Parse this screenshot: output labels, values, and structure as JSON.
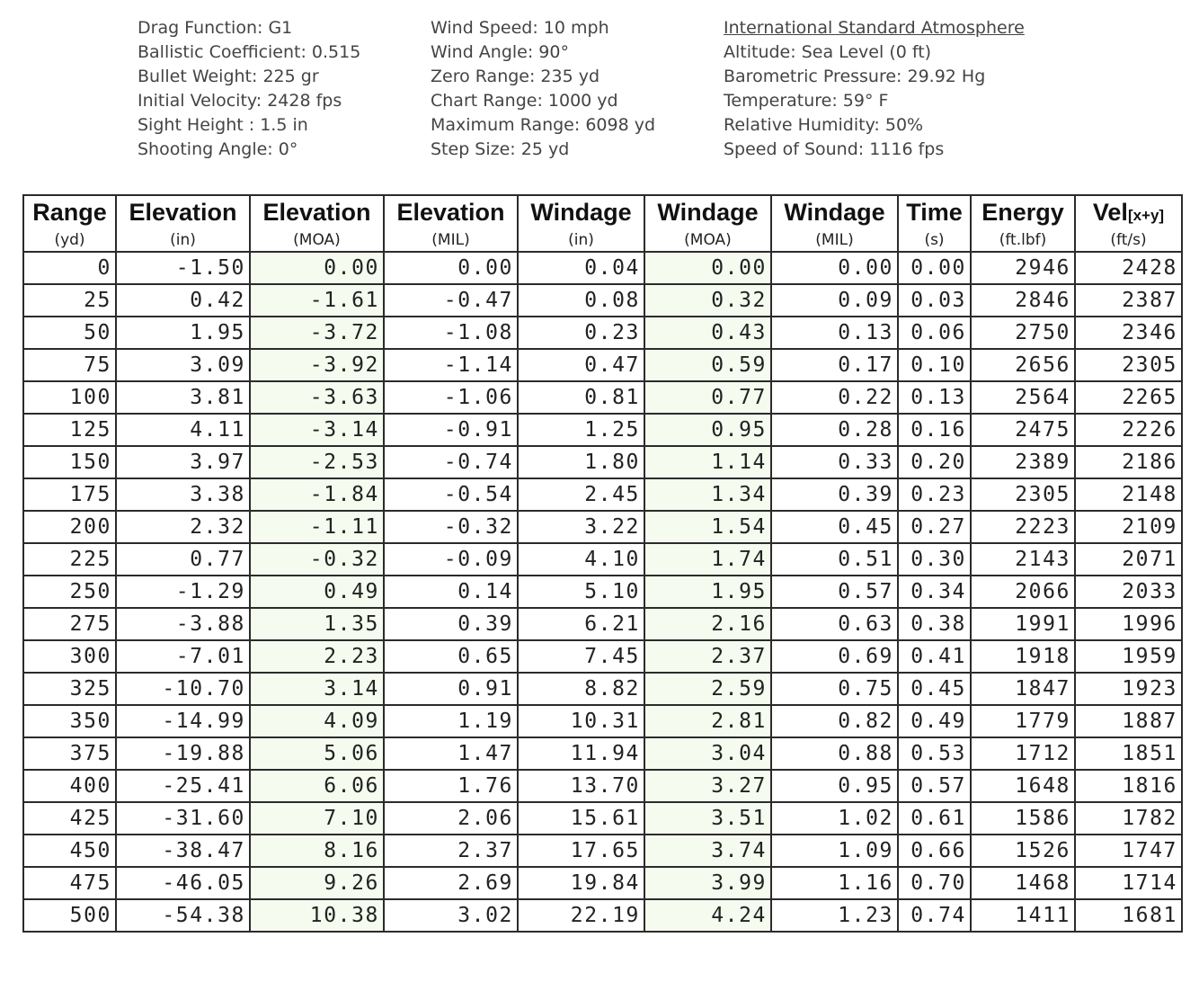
{
  "info": {
    "columns": [
      [
        "Drag Function: G1",
        "Ballistic Coefficient: 0.515",
        "Bullet Weight: 225 gr",
        "Initial Velocity: 2428 fps",
        "Sight Height : 1.5 in",
        "Shooting Angle: 0°"
      ],
      [
        "Wind Speed: 10 mph",
        "Wind Angle: 90°",
        "Zero Range: 235 yd",
        "Chart Range: 1000 yd",
        "Maximum Range: 6098 yd",
        "Step Size: 25 yd"
      ],
      [
        "International Standard Atmosphere",
        "Altitude: Sea Level (0 ft)",
        "Barometric Pressure: 29.92 Hg",
        "Temperature: 59° F",
        "Relative Humidity: 50%",
        "Speed of Sound: 1116 fps"
      ]
    ]
  },
  "table": {
    "columns": [
      {
        "title": "Range",
        "unit": "(yd)"
      },
      {
        "title": "Elevation",
        "unit": "(in)"
      },
      {
        "title": "Elevation",
        "unit": "(MOA)"
      },
      {
        "title": "Elevation",
        "unit": "(MIL)"
      },
      {
        "title": "Windage",
        "unit": "(in)"
      },
      {
        "title": "Windage",
        "unit": "(MOA)"
      },
      {
        "title": "Windage",
        "unit": "(MIL)"
      },
      {
        "title": "Time",
        "unit": "(s)"
      },
      {
        "title": "Energy",
        "unit": "(ft.lbf)"
      },
      {
        "title": "Vel",
        "suffix": "[x+y]",
        "unit": "(ft/s)"
      }
    ],
    "rows": [
      [
        "0",
        "-1.50",
        "0.00",
        "0.00",
        "0.04",
        "0.00",
        "0.00",
        "0.00",
        "2946",
        "2428"
      ],
      [
        "25",
        "0.42",
        "-1.61",
        "-0.47",
        "0.08",
        "0.32",
        "0.09",
        "0.03",
        "2846",
        "2387"
      ],
      [
        "50",
        "1.95",
        "-3.72",
        "-1.08",
        "0.23",
        "0.43",
        "0.13",
        "0.06",
        "2750",
        "2346"
      ],
      [
        "75",
        "3.09",
        "-3.92",
        "-1.14",
        "0.47",
        "0.59",
        "0.17",
        "0.10",
        "2656",
        "2305"
      ],
      [
        "100",
        "3.81",
        "-3.63",
        "-1.06",
        "0.81",
        "0.77",
        "0.22",
        "0.13",
        "2564",
        "2265"
      ],
      [
        "125",
        "4.11",
        "-3.14",
        "-0.91",
        "1.25",
        "0.95",
        "0.28",
        "0.16",
        "2475",
        "2226"
      ],
      [
        "150",
        "3.97",
        "-2.53",
        "-0.74",
        "1.80",
        "1.14",
        "0.33",
        "0.20",
        "2389",
        "2186"
      ],
      [
        "175",
        "3.38",
        "-1.84",
        "-0.54",
        "2.45",
        "1.34",
        "0.39",
        "0.23",
        "2305",
        "2148"
      ],
      [
        "200",
        "2.32",
        "-1.11",
        "-0.32",
        "3.22",
        "1.54",
        "0.45",
        "0.27",
        "2223",
        "2109"
      ],
      [
        "225",
        "0.77",
        "-0.32",
        "-0.09",
        "4.10",
        "1.74",
        "0.51",
        "0.30",
        "2143",
        "2071"
      ],
      [
        "250",
        "-1.29",
        "0.49",
        "0.14",
        "5.10",
        "1.95",
        "0.57",
        "0.34",
        "2066",
        "2033"
      ],
      [
        "275",
        "-3.88",
        "1.35",
        "0.39",
        "6.21",
        "2.16",
        "0.63",
        "0.38",
        "1991",
        "1996"
      ],
      [
        "300",
        "-7.01",
        "2.23",
        "0.65",
        "7.45",
        "2.37",
        "0.69",
        "0.41",
        "1918",
        "1959"
      ],
      [
        "325",
        "-10.70",
        "3.14",
        "0.91",
        "8.82",
        "2.59",
        "0.75",
        "0.45",
        "1847",
        "1923"
      ],
      [
        "350",
        "-14.99",
        "4.09",
        "1.19",
        "10.31",
        "2.81",
        "0.82",
        "0.49",
        "1779",
        "1887"
      ],
      [
        "375",
        "-19.88",
        "5.06",
        "1.47",
        "11.94",
        "3.04",
        "0.88",
        "0.53",
        "1712",
        "1851"
      ],
      [
        "400",
        "-25.41",
        "6.06",
        "1.76",
        "13.70",
        "3.27",
        "0.95",
        "0.57",
        "1648",
        "1816"
      ],
      [
        "425",
        "-31.60",
        "7.10",
        "2.06",
        "15.61",
        "3.51",
        "1.02",
        "0.61",
        "1586",
        "1782"
      ],
      [
        "450",
        "-38.47",
        "8.16",
        "2.37",
        "17.65",
        "3.74",
        "1.09",
        "0.66",
        "1526",
        "1747"
      ],
      [
        "475",
        "-46.05",
        "9.26",
        "2.69",
        "19.84",
        "3.99",
        "1.16",
        "0.70",
        "1468",
        "1714"
      ],
      [
        "500",
        "-54.38",
        "10.38",
        "3.02",
        "22.19",
        "4.24",
        "1.23",
        "0.74",
        "1411",
        "1681"
      ]
    ]
  }
}
